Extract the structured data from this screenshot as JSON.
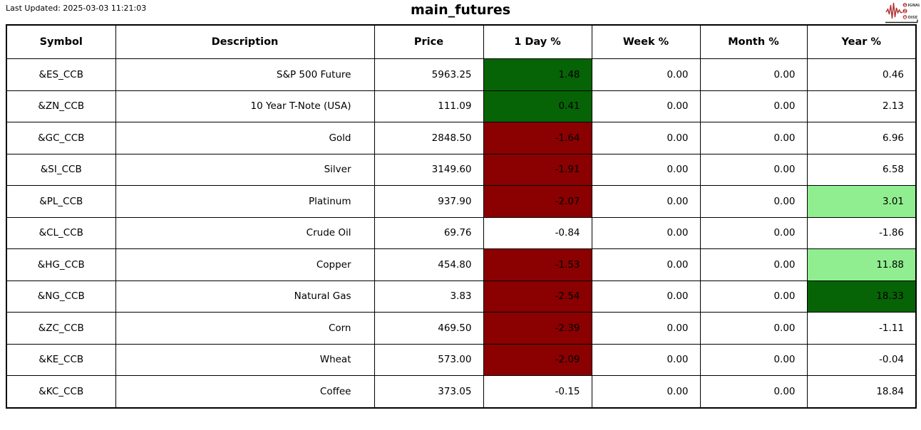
{
  "header": {
    "last_updated": "Last Updated: 2025-03-03 11:21:03"
  },
  "logo": {
    "line1": "SIGNAL",
    "line2": "2",
    "line3": "NOISE",
    "waveform_color": "#b03030"
  },
  "colors": {
    "pos_strong": "#066406",
    "pos_light": "#90ee90",
    "neg_strong": "#8b0000"
  },
  "chart_data": {
    "type": "table",
    "title": "main_futures",
    "columns": [
      "Symbol",
      "Description",
      "Price",
      "1 Day %",
      "Week %",
      "Month %",
      "Year %"
    ],
    "rows": [
      [
        {
          "text": "&ES_CCB"
        },
        {
          "text": "S&P 500 Future"
        },
        {
          "text": "5963.25"
        },
        {
          "text": "1.48",
          "bg": "pos_strong"
        },
        {
          "text": "0.00"
        },
        {
          "text": "0.00"
        },
        {
          "text": "0.46"
        }
      ],
      [
        {
          "text": "&ZN_CCB"
        },
        {
          "text": "10 Year T-Note (USA)"
        },
        {
          "text": "111.09"
        },
        {
          "text": "0.41",
          "bg": "pos_strong"
        },
        {
          "text": "0.00"
        },
        {
          "text": "0.00"
        },
        {
          "text": "2.13"
        }
      ],
      [
        {
          "text": "&GC_CCB"
        },
        {
          "text": "Gold"
        },
        {
          "text": "2848.50"
        },
        {
          "text": "-1.64",
          "bg": "neg_strong"
        },
        {
          "text": "0.00"
        },
        {
          "text": "0.00"
        },
        {
          "text": "6.96"
        }
      ],
      [
        {
          "text": "&SI_CCB"
        },
        {
          "text": "Silver"
        },
        {
          "text": "3149.60"
        },
        {
          "text": "-1.91",
          "bg": "neg_strong"
        },
        {
          "text": "0.00"
        },
        {
          "text": "0.00"
        },
        {
          "text": "6.58"
        }
      ],
      [
        {
          "text": "&PL_CCB"
        },
        {
          "text": "Platinum"
        },
        {
          "text": "937.90"
        },
        {
          "text": "-2.07",
          "bg": "neg_strong"
        },
        {
          "text": "0.00"
        },
        {
          "text": "0.00"
        },
        {
          "text": "3.01",
          "bg": "pos_light"
        }
      ],
      [
        {
          "text": "&CL_CCB"
        },
        {
          "text": "Crude Oil"
        },
        {
          "text": "69.76"
        },
        {
          "text": "-0.84"
        },
        {
          "text": "0.00"
        },
        {
          "text": "0.00"
        },
        {
          "text": "-1.86"
        }
      ],
      [
        {
          "text": "&HG_CCB"
        },
        {
          "text": "Copper"
        },
        {
          "text": "454.80"
        },
        {
          "text": "-1.53",
          "bg": "neg_strong"
        },
        {
          "text": "0.00"
        },
        {
          "text": "0.00"
        },
        {
          "text": "11.88",
          "bg": "pos_light"
        }
      ],
      [
        {
          "text": "&NG_CCB"
        },
        {
          "text": "Natural Gas"
        },
        {
          "text": "3.83"
        },
        {
          "text": "-2.54",
          "bg": "neg_strong"
        },
        {
          "text": "0.00"
        },
        {
          "text": "0.00"
        },
        {
          "text": "18.33",
          "bg": "pos_strong"
        }
      ],
      [
        {
          "text": "&ZC_CCB"
        },
        {
          "text": "Corn"
        },
        {
          "text": "469.50"
        },
        {
          "text": "-2.39",
          "bg": "neg_strong"
        },
        {
          "text": "0.00"
        },
        {
          "text": "0.00"
        },
        {
          "text": "-1.11"
        }
      ],
      [
        {
          "text": "&KE_CCB"
        },
        {
          "text": "Wheat"
        },
        {
          "text": "573.00"
        },
        {
          "text": "-2.09",
          "bg": "neg_strong"
        },
        {
          "text": "0.00"
        },
        {
          "text": "0.00"
        },
        {
          "text": "-0.04"
        }
      ],
      [
        {
          "text": "&KC_CCB"
        },
        {
          "text": "Coffee"
        },
        {
          "text": "373.05"
        },
        {
          "text": "-0.15"
        },
        {
          "text": "0.00"
        },
        {
          "text": "0.00"
        },
        {
          "text": "18.84"
        }
      ]
    ]
  }
}
